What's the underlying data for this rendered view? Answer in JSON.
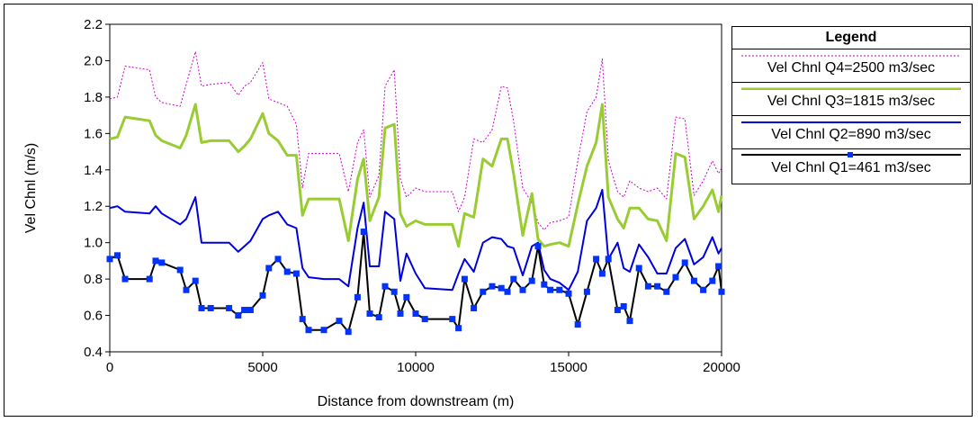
{
  "chart_data": {
    "type": "line",
    "title": "",
    "xlabel": "Distance from downstream (m)",
    "ylabel": "Vel Chnl (m/s)",
    "xlim": [
      0,
      20000
    ],
    "ylim": [
      0.4,
      2.2
    ],
    "xticks": [
      0,
      5000,
      10000,
      15000,
      20000
    ],
    "yticks": [
      0.4,
      0.6,
      0.8,
      1.0,
      1.2,
      1.4,
      1.6,
      1.8,
      2.0,
      2.2
    ],
    "ytick_labels": [
      "0.4",
      "0.6",
      "0.8",
      "1.0",
      "1.2",
      "1.4",
      "1.6",
      "1.8",
      "2.0",
      "2.2"
    ],
    "legend_title": "Legend",
    "x": [
      0,
      250,
      500,
      1300,
      1500,
      1700,
      2300,
      2500,
      2800,
      3000,
      3300,
      3900,
      4200,
      4400,
      4600,
      5000,
      5200,
      5500,
      5800,
      6100,
      6300,
      6500,
      7000,
      7500,
      7800,
      8100,
      8300,
      8500,
      8800,
      9000,
      9300,
      9500,
      9700,
      10000,
      10300,
      11200,
      11400,
      11600,
      11900,
      12200,
      12500,
      12800,
      13000,
      13200,
      13500,
      13800,
      14000,
      14200,
      14400,
      14700,
      15000,
      15300,
      15600,
      15900,
      16100,
      16300,
      16600,
      16800,
      17000,
      17300,
      17600,
      17900,
      18200,
      18500,
      18800,
      19100,
      19400,
      19700,
      19900,
      20000
    ],
    "series": [
      {
        "name": "Vel Chnl Q4=2500 m3/sec",
        "color": "#cc00cc",
        "style": "dotted",
        "values": [
          1.79,
          1.8,
          1.97,
          1.95,
          1.8,
          1.77,
          1.75,
          1.87,
          2.05,
          1.86,
          1.87,
          1.88,
          1.81,
          1.86,
          1.88,
          1.99,
          1.79,
          1.77,
          1.75,
          1.65,
          1.3,
          1.49,
          1.49,
          1.49,
          1.28,
          1.55,
          1.62,
          1.25,
          1.37,
          1.86,
          1.95,
          1.35,
          1.25,
          1.3,
          1.28,
          1.28,
          1.17,
          1.25,
          1.57,
          1.55,
          1.62,
          1.86,
          1.85,
          1.67,
          1.3,
          1.22,
          1.11,
          1.07,
          1.11,
          1.12,
          1.14,
          1.45,
          1.72,
          1.8,
          2.01,
          1.45,
          1.28,
          1.25,
          1.34,
          1.3,
          1.28,
          1.3,
          1.24,
          1.69,
          1.68,
          1.26,
          1.34,
          1.45,
          1.38,
          1.41
        ]
      },
      {
        "name": "Vel Chnl Q3=1815 m3/sec",
        "color": "#99cc33",
        "style": "solid",
        "values": [
          1.57,
          1.58,
          1.69,
          1.67,
          1.59,
          1.56,
          1.52,
          1.59,
          1.76,
          1.55,
          1.56,
          1.56,
          1.5,
          1.53,
          1.57,
          1.71,
          1.6,
          1.56,
          1.48,
          1.48,
          1.15,
          1.24,
          1.24,
          1.24,
          1.01,
          1.35,
          1.46,
          1.12,
          1.25,
          1.63,
          1.65,
          1.16,
          1.09,
          1.12,
          1.1,
          1.1,
          0.98,
          1.16,
          1.14,
          1.46,
          1.42,
          1.57,
          1.57,
          1.38,
          1.04,
          1.27,
          1.02,
          0.98,
          0.99,
          1.0,
          0.98,
          1.21,
          1.42,
          1.55,
          1.76,
          1.25,
          1.13,
          1.08,
          1.19,
          1.19,
          1.13,
          1.12,
          1.01,
          1.49,
          1.47,
          1.13,
          1.2,
          1.29,
          1.17,
          1.26
        ]
      },
      {
        "name": "Vel Chnl Q2=890 m3/sec",
        "color": "#0000dd",
        "style": "solid",
        "values": [
          1.19,
          1.2,
          1.17,
          1.16,
          1.2,
          1.16,
          1.1,
          1.13,
          1.25,
          1.0,
          1.0,
          1.0,
          0.95,
          0.98,
          1.01,
          1.13,
          1.15,
          1.17,
          1.1,
          1.08,
          0.86,
          0.81,
          0.8,
          0.8,
          0.76,
          1.08,
          1.22,
          0.87,
          0.87,
          1.17,
          1.13,
          0.79,
          0.94,
          0.83,
          0.75,
          0.74,
          0.83,
          0.91,
          0.84,
          1.0,
          1.03,
          1.02,
          0.98,
          0.97,
          0.82,
          0.98,
          1.0,
          0.85,
          0.8,
          0.78,
          0.74,
          0.84,
          1.12,
          1.19,
          1.29,
          0.91,
          1.0,
          0.86,
          0.84,
          0.99,
          0.92,
          0.83,
          0.83,
          0.97,
          1.02,
          0.88,
          0.92,
          1.03,
          0.94,
          0.97
        ]
      },
      {
        "name": "Vel Chnl Q1=461 m3/sec",
        "color": "#000000",
        "marker": "square",
        "marker_color": "#0033ff",
        "style": "solid",
        "values": [
          0.91,
          0.93,
          0.8,
          0.8,
          0.9,
          0.89,
          0.85,
          0.74,
          0.79,
          0.64,
          0.64,
          0.64,
          0.6,
          0.63,
          0.63,
          0.71,
          0.86,
          0.91,
          0.84,
          0.83,
          0.58,
          0.52,
          0.52,
          0.57,
          0.51,
          0.7,
          1.06,
          0.61,
          0.59,
          0.76,
          0.73,
          0.61,
          0.7,
          0.61,
          0.58,
          0.58,
          0.53,
          0.8,
          0.64,
          0.73,
          0.76,
          0.75,
          0.73,
          0.8,
          0.74,
          0.79,
          0.98,
          0.77,
          0.74,
          0.74,
          0.72,
          0.55,
          0.73,
          0.91,
          0.83,
          0.91,
          0.63,
          0.65,
          0.57,
          0.86,
          0.76,
          0.76,
          0.73,
          0.81,
          0.89,
          0.79,
          0.74,
          0.79,
          0.87,
          0.73
        ]
      }
    ]
  }
}
